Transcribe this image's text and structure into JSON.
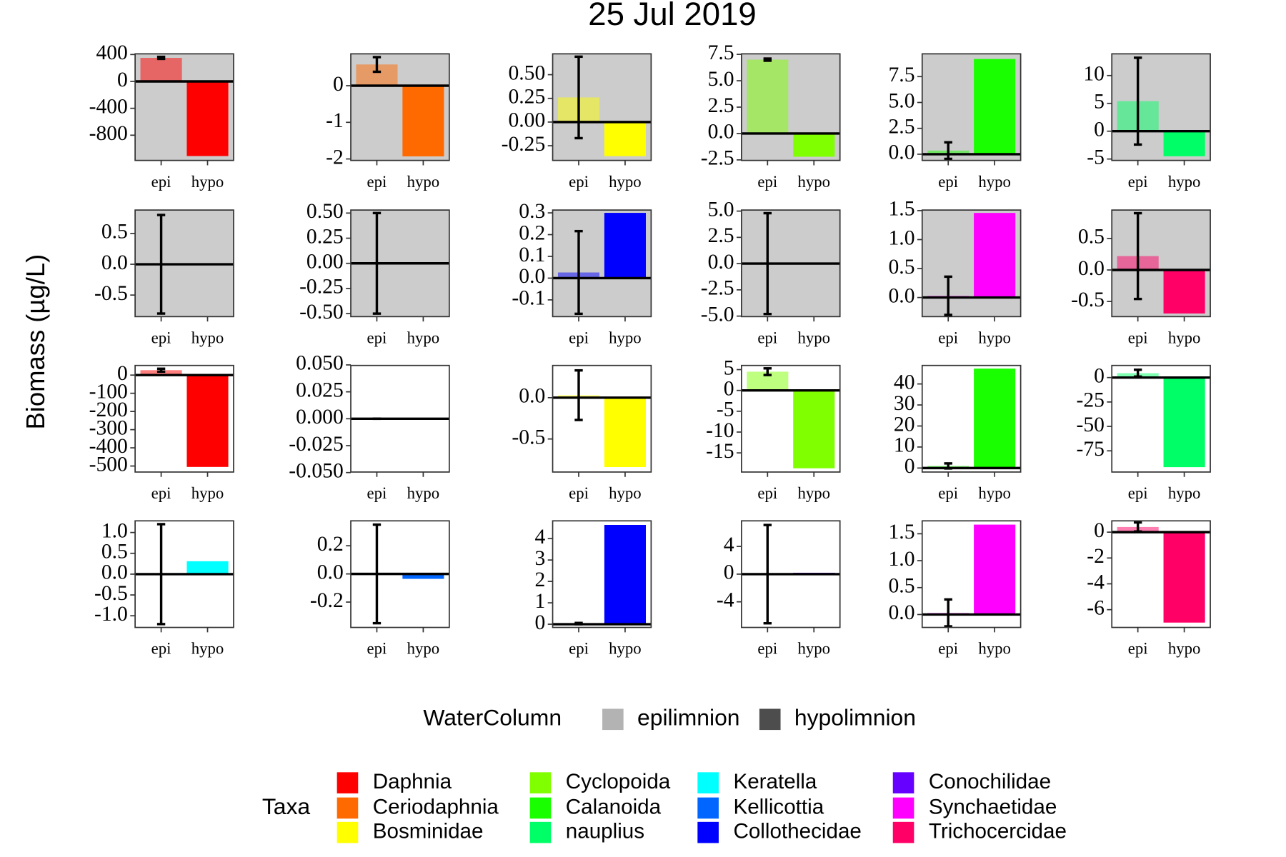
{
  "title": "25 Jul 2019",
  "y_label": "Biomass (µg/L)",
  "legends": {
    "water_column": {
      "title": "WaterColumn",
      "entries": [
        {
          "name": "epilimnion",
          "color": "#b3b3b3"
        },
        {
          "name": "hypolimnion",
          "color": "#4d4d4d"
        }
      ]
    },
    "taxa": {
      "title": "Taxa",
      "entries": [
        {
          "name": "Daphnia",
          "color": "#ff0000"
        },
        {
          "name": "Ceriodaphnia",
          "color": "#ff6a00"
        },
        {
          "name": "Bosminidae",
          "color": "#ffff00"
        },
        {
          "name": "Cyclopoida",
          "color": "#80ff00"
        },
        {
          "name": "Calanoida",
          "color": "#1aff00"
        },
        {
          "name": "nauplius",
          "color": "#00ff66"
        },
        {
          "name": "Keratella",
          "color": "#00ffff"
        },
        {
          "name": "Kellicottia",
          "color": "#0066ff"
        },
        {
          "name": "Collothecidae",
          "color": "#0000ff"
        },
        {
          "name": "Conochilidae",
          "color": "#6600ff"
        },
        {
          "name": "Synchaetidae",
          "color": "#ff00ff"
        },
        {
          "name": "Trichocercidae",
          "color": "#ff0066"
        }
      ]
    }
  },
  "chart_data": [
    {
      "type": "bar",
      "categories": [
        "epi",
        "hypo"
      ],
      "values": [
        350,
        -1110
      ],
      "errors": [
        15,
        null
      ],
      "color": "#ff0000",
      "background": "#cccccc",
      "ylim": [
        -1175,
        410
      ],
      "yticks": [
        400,
        0,
        -400,
        -800
      ]
    },
    {
      "type": "bar",
      "categories": [
        "epi",
        "hypo"
      ],
      "values": [
        0.58,
        -1.93
      ],
      "errors": [
        0.2,
        null
      ],
      "color": "#ff6a00",
      "background": "#cccccc",
      "ylim": [
        -2.04,
        0.87
      ],
      "yticks": [
        0,
        -1,
        -2
      ]
    },
    {
      "type": "bar",
      "categories": [
        "epi",
        "hypo"
      ],
      "values": [
        0.26,
        -0.36
      ],
      "errors": [
        0.43,
        null
      ],
      "color": "#ffff00",
      "background": "#cccccc",
      "ylim": [
        -0.405,
        0.72
      ],
      "yticks": [
        {
          "value": 0.5,
          "label": "0.50"
        },
        0.25,
        {
          "value": 0,
          "label": "0.00"
        },
        -0.25
      ]
    },
    {
      "type": "bar",
      "categories": [
        "epi",
        "hypo"
      ],
      "values": [
        7.0,
        -2.2
      ],
      "errors": [
        0.1,
        null
      ],
      "color": "#80ff00",
      "background": "#cccccc",
      "ylim": [
        -2.55,
        7.55
      ],
      "yticks": [
        7.5,
        {
          "value": 5,
          "label": "5.0"
        },
        2.5,
        {
          "value": 0,
          "label": "0.0"
        },
        -2.5
      ]
    },
    {
      "type": "bar",
      "categories": [
        "epi",
        "hypo"
      ],
      "values": [
        0.35,
        9.2
      ],
      "errors": [
        0.8,
        null
      ],
      "color": "#1aff00",
      "background": "#cccccc",
      "ylim": [
        -0.6,
        9.7
      ],
      "yticks": [
        7.5,
        {
          "value": 5,
          "label": "5.0"
        },
        2.5,
        {
          "value": 0,
          "label": "0.0"
        }
      ]
    },
    {
      "type": "bar",
      "categories": [
        "epi",
        "hypo"
      ],
      "values": [
        5.4,
        -4.5
      ],
      "errors": [
        7.8,
        null
      ],
      "color": "#00ff66",
      "background": "#cccccc",
      "ylim": [
        -5.25,
        13.9
      ],
      "yticks": [
        10,
        5,
        0,
        -5
      ]
    },
    {
      "type": "bar",
      "categories": [
        "epi",
        "hypo"
      ],
      "values": [
        0,
        0
      ],
      "errors": [
        0.8,
        null
      ],
      "color": "#00ffff",
      "background": "#cccccc",
      "ylim": [
        -0.85,
        0.88
      ],
      "yticks": [
        0.5,
        {
          "value": 0,
          "label": "0.0"
        },
        -0.5
      ]
    },
    {
      "type": "bar",
      "categories": [
        "epi",
        "hypo"
      ],
      "values": [
        0,
        0
      ],
      "errors": [
        0.5,
        null
      ],
      "color": "#0066ff",
      "background": "#cccccc",
      "ylim": [
        -0.53,
        0.53
      ],
      "yticks": [
        {
          "value": 0.5,
          "label": "0.50"
        },
        0.25,
        {
          "value": 0,
          "label": "0.00"
        },
        -0.25,
        {
          "value": -0.5,
          "label": "-0.50"
        }
      ]
    },
    {
      "type": "bar",
      "categories": [
        "epi",
        "hypo"
      ],
      "values": [
        0.026,
        0.3
      ],
      "errors": [
        0.19,
        null
      ],
      "color": "#0000ff",
      "background": "#cccccc",
      "ylim": [
        -0.177,
        0.313
      ],
      "yticks": [
        0.3,
        0.2,
        0.1,
        {
          "value": 0,
          "label": "0.0"
        },
        -0.1
      ]
    },
    {
      "type": "bar",
      "categories": [
        "epi",
        "hypo"
      ],
      "values": [
        0,
        0
      ],
      "errors": [
        4.8,
        null
      ],
      "color": "#6600ff",
      "background": "#cccccc",
      "ylim": [
        -5.05,
        5.1
      ],
      "yticks": [
        {
          "value": 5,
          "label": "5.0"
        },
        2.5,
        {
          "value": 0,
          "label": "0.0"
        },
        -2.5,
        {
          "value": -5,
          "label": "-5.0"
        }
      ]
    },
    {
      "type": "bar",
      "categories": [
        "epi",
        "hypo"
      ],
      "values": [
        0.03,
        1.46
      ],
      "errors": [
        0.33,
        null
      ],
      "color": "#ff00ff",
      "background": "#cccccc",
      "ylim": [
        -0.33,
        1.51
      ],
      "yticks": [
        1.5,
        {
          "value": 1,
          "label": "1.0"
        },
        0.5,
        {
          "value": 0,
          "label": "0.0"
        }
      ]
    },
    {
      "type": "bar",
      "categories": [
        "epi",
        "hypo"
      ],
      "values": [
        0.22,
        -0.69
      ],
      "errors": [
        0.68,
        null
      ],
      "color": "#ff0066",
      "background": "#cccccc",
      "ylim": [
        -0.74,
        0.95
      ],
      "yticks": [
        0.5,
        {
          "value": 0,
          "label": "0.0"
        },
        -0.5
      ]
    },
    {
      "type": "bar",
      "categories": [
        "epi",
        "hypo"
      ],
      "values": [
        27,
        -505
      ],
      "errors": [
        8,
        null
      ],
      "color": "#ff0000",
      "background": "#ffffff",
      "ylim": [
        -533,
        53
      ],
      "yticks": [
        0,
        -100,
        -200,
        -300,
        -400,
        -500
      ]
    },
    {
      "type": "bar",
      "categories": [
        "epi",
        "hypo"
      ],
      "values": [
        0,
        0
      ],
      "errors": [
        0,
        null
      ],
      "color": "#ff6a00",
      "background": "#ffffff",
      "ylim": [
        -0.0495,
        0.0495
      ],
      "yticks": [
        {
          "value": 0.05,
          "label": "0.050"
        },
        0.025,
        {
          "value": 0,
          "label": "0.000"
        },
        -0.025,
        {
          "value": -0.05,
          "label": "-0.050"
        }
      ]
    },
    {
      "type": "bar",
      "categories": [
        "epi",
        "hypo"
      ],
      "values": [
        0.03,
        -0.84
      ],
      "errors": [
        0.3,
        null
      ],
      "color": "#ffff00",
      "background": "#ffffff",
      "ylim": [
        -0.9,
        0.39
      ],
      "yticks": [
        {
          "value": 0,
          "label": "0.0"
        },
        -0.5
      ]
    },
    {
      "type": "bar",
      "categories": [
        "epi",
        "hypo"
      ],
      "values": [
        4.5,
        -18.7
      ],
      "errors": [
        0.8,
        null
      ],
      "color": "#80ff00",
      "background": "#ffffff",
      "ylim": [
        -19.6,
        6
      ],
      "yticks": [
        5,
        0,
        -5,
        -10,
        -15
      ]
    },
    {
      "type": "bar",
      "categories": [
        "epi",
        "hypo"
      ],
      "values": [
        1.0,
        47.3
      ],
      "errors": [
        1.2,
        null
      ],
      "color": "#1aff00",
      "background": "#ffffff",
      "ylim": [
        -1.9,
        48.8
      ],
      "yticks": [
        40,
        30,
        20,
        10,
        0
      ]
    },
    {
      "type": "bar",
      "categories": [
        "epi",
        "hypo"
      ],
      "values": [
        4.5,
        -91.7
      ],
      "errors": [
        3.5,
        null
      ],
      "color": "#00ff66",
      "background": "#ffffff",
      "ylim": [
        -96.7,
        12.4
      ],
      "yticks": [
        0,
        -25,
        -50,
        -75
      ]
    },
    {
      "type": "bar",
      "categories": [
        "epi",
        "hypo"
      ],
      "values": [
        0,
        0.31
      ],
      "errors": [
        1.2,
        null
      ],
      "color": "#00ffff",
      "background": "#ffffff",
      "ylim": [
        -1.28,
        1.28
      ],
      "yticks": [
        {
          "value": 1,
          "label": "1.0"
        },
        0.5,
        {
          "value": 0,
          "label": "0.0"
        },
        -0.5,
        {
          "value": -1,
          "label": "-1.0"
        }
      ]
    },
    {
      "type": "bar",
      "categories": [
        "epi",
        "hypo"
      ],
      "values": [
        0,
        -0.035
      ],
      "errors": [
        0.35,
        null
      ],
      "color": "#0066ff",
      "background": "#ffffff",
      "ylim": [
        -0.38,
        0.377
      ],
      "yticks": [
        0.2,
        {
          "value": 0,
          "label": "0.0"
        },
        -0.2
      ]
    },
    {
      "type": "bar",
      "categories": [
        "epi",
        "hypo"
      ],
      "values": [
        0.03,
        4.64
      ],
      "errors": [
        0.03,
        null
      ],
      "color": "#0000ff",
      "background": "#ffffff",
      "ylim": [
        -0.15,
        4.83
      ],
      "yticks": [
        4,
        3,
        2,
        1,
        0
      ]
    },
    {
      "type": "bar",
      "categories": [
        "epi",
        "hypo"
      ],
      "values": [
        0,
        0.2
      ],
      "errors": [
        7.1,
        null
      ],
      "color": "#6600ff",
      "background": "#ffffff",
      "ylim": [
        -7.7,
        7.7
      ],
      "yticks": [
        4,
        0,
        -4
      ]
    },
    {
      "type": "bar",
      "categories": [
        "epi",
        "hypo"
      ],
      "values": [
        0.03,
        1.67
      ],
      "errors": [
        0.25,
        null
      ],
      "color": "#ff00ff",
      "background": "#ffffff",
      "ylim": [
        -0.24,
        1.74
      ],
      "yticks": [
        1.5,
        {
          "value": 1,
          "label": "1.0"
        },
        0.5,
        {
          "value": 0,
          "label": "0.0"
        }
      ]
    },
    {
      "type": "bar",
      "categories": [
        "epi",
        "hypo"
      ],
      "values": [
        0.4,
        -7.0
      ],
      "errors": [
        0.35,
        null
      ],
      "color": "#ff0066",
      "background": "#ffffff",
      "ylim": [
        -7.375,
        0.875
      ],
      "yticks": [
        0,
        -2,
        -4,
        -6
      ]
    }
  ]
}
